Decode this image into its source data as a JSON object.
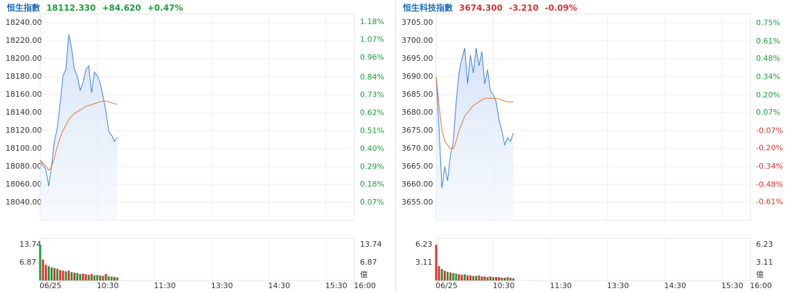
{
  "chart_data": [
    {
      "type": "line",
      "title": "恒生指數",
      "title_color": "#1e6fb8",
      "price": "18112.330",
      "change": "+84.620",
      "change_pct": "+0.47%",
      "quote_color": "#1a9c3a",
      "x": [
        "09:30",
        "09:33",
        "09:36",
        "09:39",
        "09:42",
        "09:45",
        "09:48",
        "09:51",
        "09:54",
        "09:57",
        "10:00",
        "10:03",
        "10:06",
        "10:09",
        "10:12",
        "10:15",
        "10:18",
        "10:21",
        "10:24",
        "10:27",
        "10:30",
        "10:33",
        "10:36",
        "10:39",
        "10:42",
        "10:45",
        "10:48",
        "10:51"
      ],
      "xlim": [
        "09:30",
        "16:00"
      ],
      "x_break": [
        "12:00",
        "13:00"
      ],
      "xticks": [
        {
          "value": "09:30",
          "label": "06/25"
        },
        "10:30",
        "11:30",
        "13:30",
        "14:30",
        "15:30",
        "16:00"
      ],
      "ylim": [
        18020,
        18250
      ],
      "yticks": [
        {
          "value": 18040,
          "label": "18040.00"
        },
        {
          "value": 18060,
          "label": "18060.00"
        },
        {
          "value": 18080,
          "label": "18080.00"
        },
        {
          "value": 18100,
          "label": "18100.00"
        },
        {
          "value": 18120,
          "label": "18120.00"
        },
        {
          "value": 18140,
          "label": "18140.00"
        },
        {
          "value": 18160,
          "label": "18160.00"
        },
        {
          "value": 18180,
          "label": "18180.00"
        },
        {
          "value": 18200,
          "label": "18200.00"
        },
        {
          "value": 18220,
          "label": "18220.00"
        },
        {
          "value": 18240,
          "label": "18240.00"
        }
      ],
      "y2lim": [
        -0.04,
        1.23
      ],
      "y2ticks": [
        {
          "value": 0.07,
          "label": "0.07%"
        },
        {
          "value": 0.18,
          "label": "0.18%"
        },
        {
          "value": 0.29,
          "label": "0.29%"
        },
        {
          "value": 0.4,
          "label": "0.40%"
        },
        {
          "value": 0.51,
          "label": "0.51%"
        },
        {
          "value": 0.62,
          "label": "0.62%"
        },
        {
          "value": 0.73,
          "label": "0.73%"
        },
        {
          "value": 0.84,
          "label": "0.84%"
        },
        {
          "value": 0.96,
          "label": "0.96%"
        },
        {
          "value": 1.07,
          "label": "1.07%"
        },
        {
          "value": 1.18,
          "label": "1.18%"
        }
      ],
      "up_color": "#1a9c3a",
      "down_color": "#e03030",
      "grid": true,
      "series": [
        {
          "color": "#3b7fd6",
          "values": [
            18087,
            18081,
            18077,
            18058,
            18081,
            18108,
            18123,
            18150,
            18181,
            18188,
            18227,
            18212,
            18188,
            18181,
            18165,
            18173,
            18188,
            18192,
            18162,
            18185,
            18181,
            18173,
            18158,
            18142,
            18119,
            18115,
            18108,
            18112.33
          ]
        },
        {
          "color": "#e8702a",
          "values": [
            18087,
            18084,
            18080,
            18076,
            18080,
            18090,
            18102,
            18112,
            18120,
            18126,
            18132,
            18136,
            18139,
            18141,
            18143,
            18145,
            18147,
            18148,
            18149,
            18150,
            18151,
            18152,
            18153,
            18153,
            18152,
            18151,
            18150,
            18149
          ]
        }
      ],
      "volume": {
        "ylim": [
          0,
          16.1
        ],
        "yticks": [
          6.87,
          13.74
        ],
        "unit": "億",
        "values": [
          13.5,
          8,
          6,
          5.5,
          5,
          4.8,
          4.5,
          4,
          3.8,
          3.5,
          3.8,
          3.2,
          3,
          2.9,
          2.5,
          2.7,
          2.4,
          2.2,
          2.5,
          2,
          2.1,
          1.9,
          1.8,
          2.5,
          1.6,
          1.5,
          1.4,
          1.2
        ],
        "colors": [
          "#1a9c3a",
          "#e03030",
          "#e03030",
          "#1a9c3a",
          "#1a9c3a",
          "#e03030",
          "#1a9c3a",
          "#e03030",
          "#e03030",
          "#1a9c3a",
          "#e03030",
          "#1a9c3a",
          "#e03030",
          "#1a9c3a",
          "#1a9c3a",
          "#e03030",
          "#e03030",
          "#1a9c3a",
          "#e03030",
          "#1a9c3a",
          "#1a9c3a",
          "#e03030",
          "#1a9c3a",
          "#e03030",
          "#1a9c3a",
          "#1a9c3a",
          "#e03030",
          "#1a9c3a"
        ]
      }
    },
    {
      "type": "line",
      "title": "恒生科技指數",
      "title_color": "#1e6fb8",
      "price": "3674.300",
      "change": "-3.210",
      "change_pct": "-0.09%",
      "quote_color": "#e03030",
      "x": [
        "09:30",
        "09:33",
        "09:36",
        "09:39",
        "09:42",
        "09:45",
        "09:48",
        "09:51",
        "09:54",
        "09:57",
        "10:00",
        "10:03",
        "10:06",
        "10:09",
        "10:12",
        "10:15",
        "10:18",
        "10:21",
        "10:24",
        "10:27",
        "10:30",
        "10:33",
        "10:36",
        "10:39",
        "10:42",
        "10:45",
        "10:48",
        "10:51"
      ],
      "xlim": [
        "09:30",
        "16:00"
      ],
      "x_break": [
        "12:00",
        "13:00"
      ],
      "xticks": [
        {
          "value": "09:30",
          "label": "06/25"
        },
        "10:30",
        "11:30",
        "13:30",
        "14:30",
        "15:30",
        "16:00"
      ],
      "ylim": [
        3650,
        3707.5
      ],
      "yticks": [
        {
          "value": 3655,
          "label": "3655.00"
        },
        {
          "value": 3660,
          "label": "3660.00"
        },
        {
          "value": 3665,
          "label": "3665.00"
        },
        {
          "value": 3670,
          "label": "3670.00"
        },
        {
          "value": 3675,
          "label": "3675.00"
        },
        {
          "value": 3680,
          "label": "3680.00"
        },
        {
          "value": 3685,
          "label": "3685.00"
        },
        {
          "value": 3690,
          "label": "3690.00"
        },
        {
          "value": 3695,
          "label": "3695.00"
        },
        {
          "value": 3700,
          "label": "3700.00"
        },
        {
          "value": 3705,
          "label": "3705.00"
        }
      ],
      "y2lim": [
        -0.75,
        0.82
      ],
      "y2ticks": [
        {
          "value": -0.61,
          "label": "-0.61%"
        },
        {
          "value": -0.48,
          "label": "-0.48%"
        },
        {
          "value": -0.34,
          "label": "-0.34%"
        },
        {
          "value": -0.2,
          "label": "-0.20%"
        },
        {
          "value": -0.07,
          "label": "-0.07%"
        },
        {
          "value": 0.07,
          "label": "0.07%"
        },
        {
          "value": 0.2,
          "label": "0.20%"
        },
        {
          "value": 0.34,
          "label": "0.34%"
        },
        {
          "value": 0.48,
          "label": "0.48%"
        },
        {
          "value": 0.61,
          "label": "0.61%"
        },
        {
          "value": 0.75,
          "label": "0.75%"
        }
      ],
      "up_color": "#1a9c3a",
      "down_color": "#e03030",
      "grid": true,
      "series": [
        {
          "color": "#3b7fd6",
          "values": [
            3690,
            3676,
            3659,
            3665,
            3661,
            3668,
            3672,
            3683,
            3691,
            3695,
            3698,
            3688,
            3696,
            3691,
            3698,
            3693,
            3697,
            3688,
            3692,
            3686,
            3685,
            3683,
            3678,
            3675,
            3671,
            3673,
            3672,
            3674.3
          ]
        },
        {
          "color": "#e8702a",
          "values": [
            3690,
            3682,
            3675,
            3672,
            3671,
            3670,
            3670,
            3672,
            3675,
            3677,
            3679,
            3680,
            3681,
            3682,
            3682.5,
            3683,
            3683.5,
            3684,
            3684,
            3684,
            3684,
            3684,
            3683.8,
            3683.5,
            3683.2,
            3683,
            3683,
            3683
          ]
        }
      ],
      "volume": {
        "ylim": [
          0,
          7.3
        ],
        "yticks": [
          3.11,
          6.23
        ],
        "unit": "億",
        "values": [
          6.2,
          2.5,
          2,
          1.7,
          1.5,
          1.4,
          1.3,
          1.2,
          1.1,
          1,
          1.1,
          0.9,
          0.9,
          0.8,
          0.8,
          0.9,
          0.7,
          0.7,
          0.6,
          0.7,
          0.6,
          0.6,
          0.6,
          0.5,
          0.5,
          0.6,
          0.5,
          0.4
        ],
        "colors": [
          "#e03030",
          "#e03030",
          "#1a9c3a",
          "#e03030",
          "#1a9c3a",
          "#e03030",
          "#1a9c3a",
          "#1a9c3a",
          "#e03030",
          "#e03030",
          "#1a9c3a",
          "#e03030",
          "#e03030",
          "#1a9c3a",
          "#e03030",
          "#1a9c3a",
          "#e03030",
          "#e03030",
          "#1a9c3a",
          "#e03030",
          "#1a9c3a",
          "#e03030",
          "#e03030",
          "#1a9c3a",
          "#e03030",
          "#1a9c3a",
          "#e03030",
          "#1a9c3a"
        ]
      }
    }
  ]
}
